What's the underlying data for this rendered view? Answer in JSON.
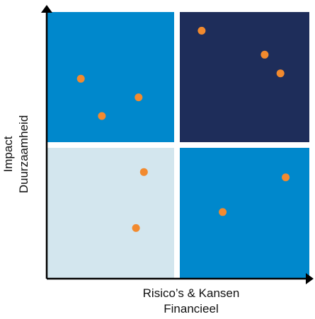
{
  "colors": {
    "top_left": "#0088cc",
    "top_right": "#1e2d5a",
    "bottom_left": "#d3e6ee",
    "bottom_right": "#0088cc",
    "point": "#f28a2e",
    "axis": "#000000"
  },
  "x_axis": {
    "line1": "Risico’s & Kansen",
    "line2": "Financieel"
  },
  "y_axis": {
    "line1": "Impact",
    "line2": "Duurzaamheid"
  },
  "chart_data": {
    "type": "scatter",
    "title": "",
    "xlabel": "Risico’s & Kansen Financieel",
    "ylabel": "Impact Duurzaamheid",
    "xlim": [
      0,
      1
    ],
    "ylim": [
      0,
      1
    ],
    "grid": false,
    "quadrants": [
      {
        "name": "top-left",
        "color": "#0088cc"
      },
      {
        "name": "top-right",
        "color": "#1e2d5a"
      },
      {
        "name": "bottom-left",
        "color": "#d3e6ee"
      },
      {
        "name": "bottom-right",
        "color": "#0088cc"
      }
    ],
    "points": [
      {
        "x": 0.13,
        "y": 0.75
      },
      {
        "x": 0.21,
        "y": 0.61
      },
      {
        "x": 0.35,
        "y": 0.68
      },
      {
        "x": 0.59,
        "y": 0.93
      },
      {
        "x": 0.83,
        "y": 0.84
      },
      {
        "x": 0.89,
        "y": 0.77
      },
      {
        "x": 0.37,
        "y": 0.4
      },
      {
        "x": 0.34,
        "y": 0.19
      },
      {
        "x": 0.67,
        "y": 0.25
      },
      {
        "x": 0.91,
        "y": 0.38
      }
    ]
  }
}
